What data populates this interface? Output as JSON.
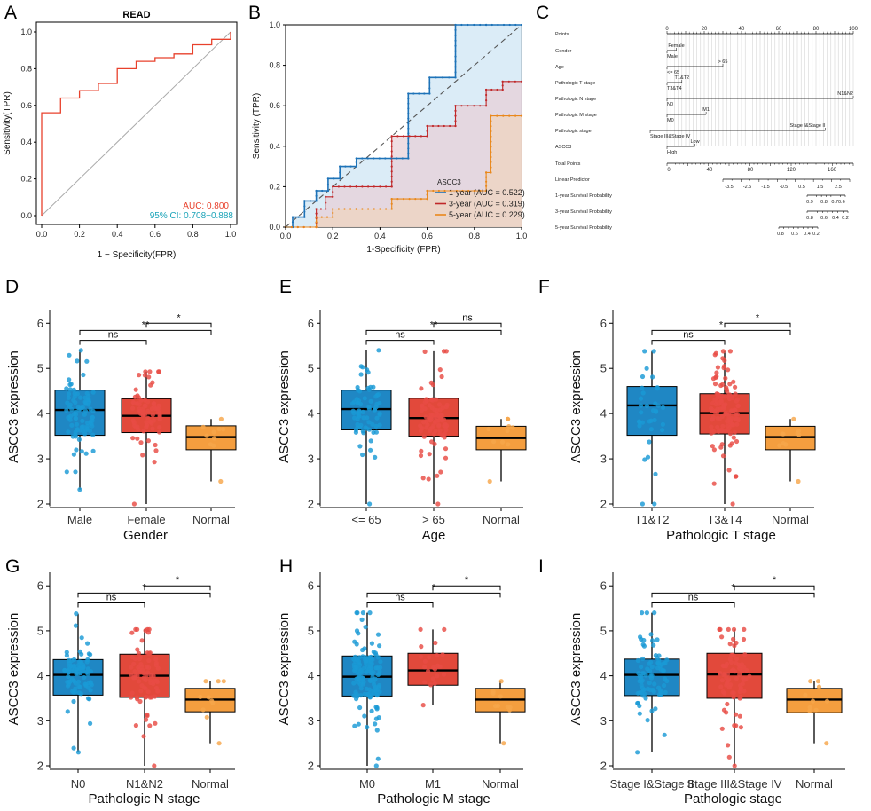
{
  "panels": {
    "A": {
      "label": "A",
      "title": "READ",
      "xlabel": "1 − Specificity(FPR)",
      "ylabel": "Sensitivity(TPR)",
      "auc_text": "AUC: 0.800",
      "ci_text": "95% CI: 0.708−0.888",
      "colors": {
        "curve": "#e8412c",
        "auc": "#e8412c",
        "ci": "#1aa3b8"
      }
    },
    "B": {
      "label": "B",
      "xlabel": "1-Specificity (FPR)",
      "ylabel": "Sensitivity (TPR)",
      "legend_title": "ASCC3",
      "legend": [
        {
          "label": "1-year (AUC = 0.522)",
          "color": "#1e73b8"
        },
        {
          "label": "3-year (AUC = 0.319)",
          "color": "#c0282a"
        },
        {
          "label": "5-year (AUC = 0.229)",
          "color": "#e9881c"
        }
      ]
    },
    "C": {
      "label": "C",
      "rows": [
        "Points",
        "Gender",
        "Age",
        "Pathologic T stage",
        "Pathologic N stage",
        "Pathologic M stage",
        "Pathologic stage",
        "ASCC3",
        "Total Points",
        "Linear Predictor",
        "1-year Survival Probability",
        "3-year Survival Probability",
        "5-year Survival Probability"
      ],
      "points_ticks": [
        "0",
        "20",
        "40",
        "60",
        "80",
        "100"
      ],
      "gender": {
        "low": "Male",
        "high": "Female"
      },
      "age": {
        "low": "<= 65",
        "high": "> 65"
      },
      "tstage": {
        "low": "T3&T4",
        "high": "T1&T2"
      },
      "nstage": {
        "low": "N0",
        "high": "N1&N2"
      },
      "mstage": {
        "low": "M0",
        "high": "M1"
      },
      "stage": {
        "low": "Stage III&Stage IV",
        "high": "Stage I&Stage II"
      },
      "ascc3": {
        "low": "High",
        "high": "Low"
      },
      "total_ticks": [
        "0",
        "40",
        "80",
        "120",
        "160"
      ],
      "lp_ticks": [
        "-3.5",
        "-2.5",
        "-1.5",
        "-0.5",
        "0.5",
        "1.5",
        "2.5"
      ],
      "surv1_ticks": [
        "0.9",
        "0.8",
        "0.70.6"
      ],
      "surv3_ticks": [
        "0.8",
        "0.6",
        "0.4",
        "0.2"
      ],
      "surv5_ticks": [
        "0.8",
        "0.6",
        "0.4",
        "0.2"
      ]
    }
  },
  "chart_data": [
    {
      "panel": "A",
      "type": "line",
      "title": "READ",
      "xlabel": "1 − Specificity(FPR)",
      "ylabel": "Sensitivity(TPR)",
      "xlim": [
        0,
        1
      ],
      "ylim": [
        0,
        1
      ],
      "x_ticks": [
        "0.0",
        "0.2",
        "0.4",
        "0.6",
        "0.8",
        "1.0"
      ],
      "y_ticks": [
        "0.0",
        "0.2",
        "0.4",
        "0.6",
        "0.8",
        "1.0"
      ],
      "series": [
        {
          "name": "ROC",
          "x": [
            0,
            0,
            0.1,
            0.1,
            0.2,
            0.2,
            0.3,
            0.3,
            0.4,
            0.4,
            0.5,
            0.5,
            0.6,
            0.6,
            0.7,
            0.7,
            0.8,
            0.8,
            0.9,
            0.9,
            1.0,
            1.0
          ],
          "y": [
            0,
            0.56,
            0.56,
            0.64,
            0.64,
            0.68,
            0.68,
            0.72,
            0.72,
            0.8,
            0.8,
            0.84,
            0.84,
            0.86,
            0.86,
            0.88,
            0.88,
            0.93,
            0.93,
            0.96,
            0.96,
            1.0
          ]
        }
      ],
      "annotations": [
        "AUC: 0.800",
        "95% CI: 0.708−0.888"
      ]
    },
    {
      "panel": "B",
      "type": "line",
      "xlabel": "1-Specificity (FPR)",
      "ylabel": "Sensitivity (TPR)",
      "xlim": [
        0,
        1
      ],
      "ylim": [
        0,
        1
      ],
      "x_ticks": [
        "0.0",
        "0.2",
        "0.4",
        "0.6",
        "0.8",
        "1.0"
      ],
      "y_ticks": [
        "0.0",
        "0.2",
        "0.4",
        "0.6",
        "0.8",
        "1.0"
      ],
      "legend_title": "ASCC3",
      "series": [
        {
          "name": "1-year (AUC = 0.522)",
          "x": [
            0,
            0.03,
            0.03,
            0.08,
            0.08,
            0.13,
            0.13,
            0.18,
            0.18,
            0.23,
            0.23,
            0.3,
            0.3,
            0.52,
            0.52,
            0.61,
            0.61,
            0.72,
            0.72,
            0.85,
            0.85,
            1.0
          ],
          "y": [
            0,
            0,
            0.05,
            0.05,
            0.13,
            0.13,
            0.18,
            0.18,
            0.24,
            0.24,
            0.3,
            0.3,
            0.34,
            0.34,
            0.66,
            0.66,
            0.74,
            0.74,
            1.0,
            1.0,
            1.0,
            1.0
          ]
        },
        {
          "name": "3-year (AUC = 0.319)",
          "x": [
            0,
            0.13,
            0.13,
            0.17,
            0.17,
            0.2,
            0.2,
            0.3,
            0.3,
            0.45,
            0.45,
            0.6,
            0.6,
            0.72,
            0.72,
            0.85,
            0.85,
            0.92,
            0.92,
            1.0
          ],
          "y": [
            0,
            0,
            0.09,
            0.09,
            0.15,
            0.15,
            0.2,
            0.2,
            0.2,
            0.2,
            0.45,
            0.45,
            0.5,
            0.5,
            0.6,
            0.6,
            0.68,
            0.68,
            0.72,
            0.72
          ]
        },
        {
          "name": "5-year (AUC = 0.229)",
          "x": [
            0,
            0.13,
            0.13,
            0.2,
            0.2,
            0.3,
            0.3,
            0.45,
            0.45,
            0.6,
            0.6,
            0.85,
            0.85,
            0.87,
            0.87,
            1.0
          ],
          "y": [
            0,
            0,
            0.05,
            0.05,
            0.09,
            0.09,
            0.09,
            0.09,
            0.14,
            0.14,
            0.18,
            0.18,
            0.27,
            0.27,
            0.55,
            0.55
          ]
        }
      ]
    },
    {
      "panel": "D",
      "type": "box",
      "xlabel": "Gender",
      "ylabel": "ASCC3 expression",
      "ylim": [
        2,
        6.3
      ],
      "categories": [
        "Male",
        "Female",
        "Normal"
      ],
      "boxes": [
        {
          "q1": 3.52,
          "median": 4.08,
          "q3": 4.52,
          "low": 2.32,
          "high": 5.4
        },
        {
          "q1": 3.58,
          "median": 3.95,
          "q3": 4.33,
          "low": 2.0,
          "high": 4.93
        },
        {
          "q1": 3.2,
          "median": 3.48,
          "q3": 3.73,
          "low": 2.5,
          "high": 3.88
        }
      ],
      "n": [
        90,
        75,
        10
      ],
      "brackets": [
        {
          "from": 0,
          "to": 1,
          "label": "ns"
        },
        {
          "from": 0,
          "to": 2,
          "label": "**"
        },
        {
          "from": 1,
          "to": 2,
          "label": "*"
        }
      ]
    },
    {
      "panel": "E",
      "type": "box",
      "xlabel": "Age",
      "ylabel": "ASCC3 expression",
      "ylim": [
        2,
        6.3
      ],
      "categories": [
        "<= 65",
        "> 65",
        "Normal"
      ],
      "boxes": [
        {
          "q1": 3.64,
          "median": 4.1,
          "q3": 4.52,
          "low": 2.0,
          "high": 5.4
        },
        {
          "q1": 3.5,
          "median": 3.9,
          "q3": 4.34,
          "low": 2.0,
          "high": 5.38
        },
        {
          "q1": 3.2,
          "median": 3.46,
          "q3": 3.72,
          "low": 2.5,
          "high": 3.88
        }
      ],
      "n": [
        70,
        95,
        10
      ],
      "brackets": [
        {
          "from": 0,
          "to": 1,
          "label": "ns"
        },
        {
          "from": 0,
          "to": 2,
          "label": "**"
        },
        {
          "from": 1,
          "to": 2,
          "label": "ns"
        }
      ]
    },
    {
      "panel": "F",
      "type": "box",
      "xlabel": "Pathologic T stage",
      "ylabel": "ASCC3 expression",
      "ylim": [
        2,
        6.3
      ],
      "categories": [
        "T1&T2",
        "T3&T4",
        "Normal"
      ],
      "boxes": [
        {
          "q1": 3.52,
          "median": 4.18,
          "q3": 4.6,
          "low": 2.0,
          "high": 5.38
        },
        {
          "q1": 3.55,
          "median": 4.01,
          "q3": 4.44,
          "low": 2.0,
          "high": 5.38
        },
        {
          "q1": 3.2,
          "median": 3.48,
          "q3": 3.72,
          "low": 2.5,
          "high": 3.88
        }
      ],
      "n": [
        35,
        130,
        10
      ],
      "brackets": [
        {
          "from": 0,
          "to": 1,
          "label": "ns"
        },
        {
          "from": 0,
          "to": 2,
          "label": "*"
        },
        {
          "from": 1,
          "to": 2,
          "label": "*"
        }
      ]
    },
    {
      "panel": "G",
      "type": "box",
      "xlabel": "Pathologic N stage",
      "ylabel": "ASCC3 expression",
      "ylim": [
        2,
        6.3
      ],
      "categories": [
        "N0",
        "N1&N2",
        "Normal"
      ],
      "boxes": [
        {
          "q1": 3.57,
          "median": 4.02,
          "q3": 4.36,
          "low": 2.3,
          "high": 5.38
        },
        {
          "q1": 3.52,
          "median": 4.0,
          "q3": 4.48,
          "low": 2.0,
          "high": 5.03
        },
        {
          "q1": 3.2,
          "median": 3.47,
          "q3": 3.72,
          "low": 2.5,
          "high": 3.88
        }
      ],
      "n": [
        85,
        80,
        10
      ],
      "brackets": [
        {
          "from": 0,
          "to": 1,
          "label": "ns"
        },
        {
          "from": 0,
          "to": 2,
          "label": "*"
        },
        {
          "from": 1,
          "to": 2,
          "label": "*"
        }
      ]
    },
    {
      "panel": "H",
      "type": "box",
      "xlabel": "Pathologic M stage",
      "ylabel": "ASCC3 expression",
      "ylim": [
        2,
        6.3
      ],
      "categories": [
        "M0",
        "M1",
        " Normal"
      ],
      "boxes": [
        {
          "q1": 3.55,
          "median": 3.98,
          "q3": 4.44,
          "low": 2.0,
          "high": 5.4
        },
        {
          "q1": 3.79,
          "median": 4.12,
          "q3": 4.5,
          "low": 3.35,
          "high": 5.03
        },
        {
          "q1": 3.2,
          "median": 3.47,
          "q3": 3.72,
          "low": 2.5,
          "high": 3.88
        }
      ],
      "n": [
        140,
        22,
        10
      ],
      "brackets": [
        {
          "from": 0,
          "to": 1,
          "label": "ns"
        },
        {
          "from": 0,
          "to": 2,
          "label": "*"
        },
        {
          "from": 1,
          "to": 2,
          "label": "*"
        }
      ]
    },
    {
      "panel": "I",
      "type": "box",
      "xlabel": "Pathologic stage",
      "ylabel": "ASCC3 expression",
      "ylim": [
        2,
        6.3
      ],
      "categories": [
        "Stage I&Stage II",
        "Stage III&Stage IV",
        "Normal"
      ],
      "boxes": [
        {
          "q1": 3.56,
          "median": 4.02,
          "q3": 4.37,
          "low": 2.3,
          "high": 5.4
        },
        {
          "q1": 3.5,
          "median": 4.03,
          "q3": 4.5,
          "low": 2.0,
          "high": 5.03
        },
        {
          "q1": 3.18,
          "median": 3.47,
          "q3": 3.72,
          "low": 2.5,
          "high": 3.88
        }
      ],
      "n": [
        85,
        80,
        10
      ],
      "brackets": [
        {
          "from": 0,
          "to": 1,
          "label": "ns"
        },
        {
          "from": 0,
          "to": 2,
          "label": "*"
        },
        {
          "from": 1,
          "to": 2,
          "label": "*"
        }
      ]
    }
  ],
  "box_panels": [
    {
      "label": "D",
      "y_ticks": [
        "2",
        "3",
        "4",
        "5",
        "6"
      ]
    },
    {
      "label": "E",
      "y_ticks": [
        "2",
        "3",
        "4",
        "5",
        "6"
      ]
    },
    {
      "label": "F",
      "y_ticks": [
        "2",
        "3",
        "4",
        "5",
        "6"
      ]
    },
    {
      "label": "G",
      "y_ticks": [
        "2",
        "3",
        "4",
        "5",
        "6"
      ]
    },
    {
      "label": "H",
      "y_ticks": [
        "2",
        "3",
        "4",
        "5",
        "6"
      ]
    },
    {
      "label": "I",
      "y_ticks": [
        "2",
        "3",
        "4",
        "5",
        "6"
      ]
    }
  ],
  "colors": {
    "blue": "#1f87c4",
    "red": "#e2493b",
    "orange": "#f49e3f",
    "blue_pt": "#1a9ad6",
    "red_pt": "#e84c44",
    "orange_pt": "#f7a64a"
  }
}
